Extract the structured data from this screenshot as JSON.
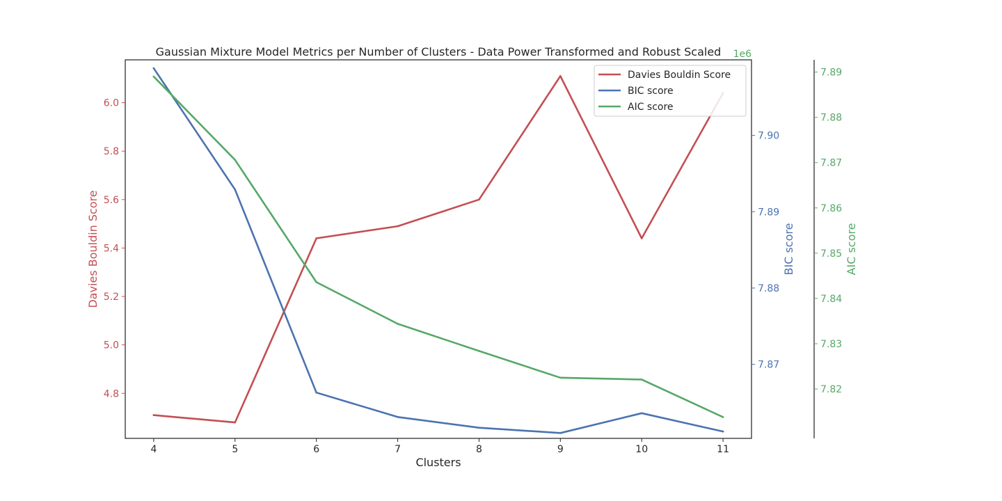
{
  "chart_data": {
    "type": "line",
    "title": "Gaussian Mixture Model Metrics per Number of Clusters - Data Power Transformed and Robust Scaled",
    "xlabel": "Clusters",
    "x": [
      4,
      5,
      6,
      7,
      8,
      9,
      10,
      11
    ],
    "x_ticks": [
      "4",
      "5",
      "6",
      "7",
      "8",
      "9",
      "10",
      "11"
    ],
    "grid": false,
    "legend_position": "top-right",
    "axes": [
      {
        "id": "davies",
        "label": "Davies Bouldin Score",
        "side": "left",
        "color": "#c44e52",
        "ylim": [
          4.614,
          6.177
        ],
        "ticks": [
          4.8,
          5.0,
          5.2,
          5.4,
          5.6,
          5.8,
          6.0
        ],
        "tick_labels": [
          "4.8",
          "5.0",
          "5.2",
          "5.4",
          "5.6",
          "5.8",
          "6.0"
        ],
        "offset_label": ""
      },
      {
        "id": "bic",
        "label": "BIC score",
        "side": "right",
        "color": "#4c72b0",
        "ylim": [
          7.8603,
          7.9099
        ],
        "ticks": [
          7.87,
          7.88,
          7.89,
          7.9
        ],
        "tick_labels": [
          "7.87",
          "7.88",
          "7.89",
          "7.90"
        ],
        "offset_label": "1e6"
      },
      {
        "id": "aic",
        "label": "AIC score",
        "side": "right-offset",
        "color": "#55a868",
        "ylim": [
          7.8091,
          7.8927
        ],
        "ticks": [
          7.82,
          7.83,
          7.84,
          7.85,
          7.86,
          7.87,
          7.88,
          7.89
        ],
        "tick_labels": [
          "7.82",
          "7.83",
          "7.84",
          "7.85",
          "7.86",
          "7.87",
          "7.88",
          "7.89"
        ],
        "offset_label": ""
      }
    ],
    "series": [
      {
        "name": "Davies Bouldin Score",
        "axis": "davies",
        "color": "#c44e52",
        "values": [
          4.71,
          4.68,
          5.44,
          5.49,
          5.6,
          6.11,
          5.44,
          6.04
        ]
      },
      {
        "name": "BIC score",
        "axis": "bic",
        "color": "#4c72b0",
        "values": [
          7.9088,
          7.8929,
          7.8663,
          7.8631,
          7.8617,
          7.861,
          7.8636,
          7.8612
        ]
      },
      {
        "name": "AIC score",
        "axis": "aic",
        "color": "#55a868",
        "values": [
          7.889,
          7.8706,
          7.8436,
          7.8344,
          7.8284,
          7.8225,
          7.8221,
          7.8138
        ]
      }
    ]
  }
}
